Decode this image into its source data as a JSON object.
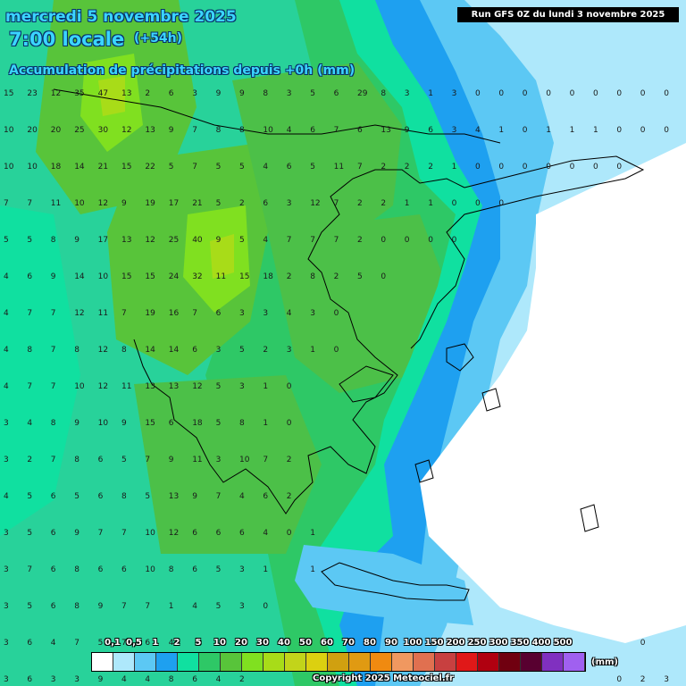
{
  "header": {
    "date": "mercredi 5 novembre 2025",
    "time": "7:00 locale",
    "lead": "(+54h)",
    "subtitle": "Accumulation de précipitations depuis +0h (mm)"
  },
  "run_info": "Run GFS 0Z du lundi 3 novembre 2025",
  "legend": {
    "unit": "(mm)",
    "labels": [
      "0,1",
      "0,5",
      "1",
      "2",
      "5",
      "10",
      "20",
      "30",
      "40",
      "50",
      "60",
      "70",
      "80",
      "90",
      "100",
      "150",
      "200",
      "250",
      "300",
      "350",
      "400",
      "500"
    ],
    "colors": [
      "#ffffff",
      "#aee8fb",
      "#5cc8f4",
      "#1ea0f0",
      "#10e0a0",
      "#2ec866",
      "#58c43a",
      "#80e020",
      "#a8dc18",
      "#c2d41a",
      "#dcd010",
      "#d0a010",
      "#e09a12",
      "#f08a10",
      "#f09860",
      "#e07050",
      "#c84040",
      "#e01818",
      "#b00010",
      "#700010",
      "#580030",
      "#8030c0",
      "#a060f0"
    ]
  },
  "copyright": "Copyright 2025 Meteociel.fr",
  "precip_values": [
    {
      "c": 1,
      "r": 1,
      "v": "15"
    },
    {
      "c": 2,
      "r": 1,
      "v": "23"
    },
    {
      "c": 3,
      "r": 1,
      "v": "12"
    },
    {
      "c": 4,
      "r": 1,
      "v": "35"
    },
    {
      "c": 5,
      "r": 1,
      "v": "47"
    },
    {
      "c": 6,
      "r": 1,
      "v": "13"
    },
    {
      "c": 7,
      "r": 1,
      "v": "2"
    },
    {
      "c": 8,
      "r": 1,
      "v": "6"
    },
    {
      "c": 9,
      "r": 1,
      "v": "3"
    },
    {
      "c": 10,
      "r": 1,
      "v": "9"
    },
    {
      "c": 11,
      "r": 1,
      "v": "9"
    },
    {
      "c": 12,
      "r": 1,
      "v": "8"
    },
    {
      "c": 13,
      "r": 1,
      "v": "3"
    },
    {
      "c": 14,
      "r": 1,
      "v": "5"
    },
    {
      "c": 15,
      "r": 1,
      "v": "6"
    },
    {
      "c": 16,
      "r": 1,
      "v": "29"
    },
    {
      "c": 17,
      "r": 1,
      "v": "8"
    },
    {
      "c": 18,
      "r": 1,
      "v": "3"
    },
    {
      "c": 19,
      "r": 1,
      "v": "1"
    },
    {
      "c": 20,
      "r": 1,
      "v": "3"
    },
    {
      "c": 21,
      "r": 1,
      "v": "0"
    },
    {
      "c": 22,
      "r": 1,
      "v": "0"
    },
    {
      "c": 23,
      "r": 1,
      "v": "0"
    },
    {
      "c": 24,
      "r": 1,
      "v": "0"
    },
    {
      "c": 25,
      "r": 1,
      "v": "0"
    },
    {
      "c": 26,
      "r": 1,
      "v": "0"
    },
    {
      "c": 27,
      "r": 1,
      "v": "0"
    },
    {
      "c": 28,
      "r": 1,
      "v": "0"
    },
    {
      "c": 29,
      "r": 1,
      "v": "0"
    },
    {
      "c": 1,
      "r": 2,
      "v": "10"
    },
    {
      "c": 2,
      "r": 2,
      "v": "20"
    },
    {
      "c": 3,
      "r": 2,
      "v": "20"
    },
    {
      "c": 4,
      "r": 2,
      "v": "25"
    },
    {
      "c": 5,
      "r": 2,
      "v": "30"
    },
    {
      "c": 6,
      "r": 2,
      "v": "12"
    },
    {
      "c": 7,
      "r": 2,
      "v": "13"
    },
    {
      "c": 8,
      "r": 2,
      "v": "9"
    },
    {
      "c": 9,
      "r": 2,
      "v": "7"
    },
    {
      "c": 10,
      "r": 2,
      "v": "8"
    },
    {
      "c": 11,
      "r": 2,
      "v": "8"
    },
    {
      "c": 12,
      "r": 2,
      "v": "10"
    },
    {
      "c": 13,
      "r": 2,
      "v": "4"
    },
    {
      "c": 14,
      "r": 2,
      "v": "6"
    },
    {
      "c": 15,
      "r": 2,
      "v": "7"
    },
    {
      "c": 16,
      "r": 2,
      "v": "6"
    },
    {
      "c": 17,
      "r": 2,
      "v": "13"
    },
    {
      "c": 18,
      "r": 2,
      "v": "9"
    },
    {
      "c": 19,
      "r": 2,
      "v": "6"
    },
    {
      "c": 20,
      "r": 2,
      "v": "3"
    },
    {
      "c": 21,
      "r": 2,
      "v": "4"
    },
    {
      "c": 22,
      "r": 2,
      "v": "1"
    },
    {
      "c": 23,
      "r": 2,
      "v": "0"
    },
    {
      "c": 24,
      "r": 2,
      "v": "1"
    },
    {
      "c": 25,
      "r": 2,
      "v": "1"
    },
    {
      "c": 26,
      "r": 2,
      "v": "1"
    },
    {
      "c": 27,
      "r": 2,
      "v": "0"
    },
    {
      "c": 28,
      "r": 2,
      "v": "0"
    },
    {
      "c": 29,
      "r": 2,
      "v": "0"
    },
    {
      "c": 1,
      "r": 3,
      "v": "10"
    },
    {
      "c": 2,
      "r": 3,
      "v": "10"
    },
    {
      "c": 3,
      "r": 3,
      "v": "18"
    },
    {
      "c": 4,
      "r": 3,
      "v": "14"
    },
    {
      "c": 5,
      "r": 3,
      "v": "21"
    },
    {
      "c": 6,
      "r": 3,
      "v": "15"
    },
    {
      "c": 7,
      "r": 3,
      "v": "22"
    },
    {
      "c": 8,
      "r": 3,
      "v": "5"
    },
    {
      "c": 9,
      "r": 3,
      "v": "7"
    },
    {
      "c": 10,
      "r": 3,
      "v": "5"
    },
    {
      "c": 11,
      "r": 3,
      "v": "5"
    },
    {
      "c": 12,
      "r": 3,
      "v": "4"
    },
    {
      "c": 13,
      "r": 3,
      "v": "6"
    },
    {
      "c": 14,
      "r": 3,
      "v": "5"
    },
    {
      "c": 15,
      "r": 3,
      "v": "11"
    },
    {
      "c": 16,
      "r": 3,
      "v": "7"
    },
    {
      "c": 17,
      "r": 3,
      "v": "2"
    },
    {
      "c": 18,
      "r": 3,
      "v": "2"
    },
    {
      "c": 19,
      "r": 3,
      "v": "2"
    },
    {
      "c": 20,
      "r": 3,
      "v": "1"
    },
    {
      "c": 21,
      "r": 3,
      "v": "0"
    },
    {
      "c": 22,
      "r": 3,
      "v": "0"
    },
    {
      "c": 23,
      "r": 3,
      "v": "0"
    },
    {
      "c": 24,
      "r": 3,
      "v": "0"
    },
    {
      "c": 25,
      "r": 3,
      "v": "0"
    },
    {
      "c": 26,
      "r": 3,
      "v": "0"
    },
    {
      "c": 27,
      "r": 3,
      "v": "0"
    },
    {
      "c": 1,
      "r": 4,
      "v": "7"
    },
    {
      "c": 2,
      "r": 4,
      "v": "7"
    },
    {
      "c": 3,
      "r": 4,
      "v": "11"
    },
    {
      "c": 4,
      "r": 4,
      "v": "10"
    },
    {
      "c": 5,
      "r": 4,
      "v": "12"
    },
    {
      "c": 6,
      "r": 4,
      "v": "9"
    },
    {
      "c": 7,
      "r": 4,
      "v": "19"
    },
    {
      "c": 8,
      "r": 4,
      "v": "17"
    },
    {
      "c": 9,
      "r": 4,
      "v": "21"
    },
    {
      "c": 10,
      "r": 4,
      "v": "5"
    },
    {
      "c": 11,
      "r": 4,
      "v": "2"
    },
    {
      "c": 12,
      "r": 4,
      "v": "6"
    },
    {
      "c": 13,
      "r": 4,
      "v": "3"
    },
    {
      "c": 14,
      "r": 4,
      "v": "12"
    },
    {
      "c": 15,
      "r": 4,
      "v": "7"
    },
    {
      "c": 16,
      "r": 4,
      "v": "2"
    },
    {
      "c": 17,
      "r": 4,
      "v": "2"
    },
    {
      "c": 18,
      "r": 4,
      "v": "1"
    },
    {
      "c": 19,
      "r": 4,
      "v": "1"
    },
    {
      "c": 20,
      "r": 4,
      "v": "0"
    },
    {
      "c": 21,
      "r": 4,
      "v": "0"
    },
    {
      "c": 22,
      "r": 4,
      "v": "0"
    },
    {
      "c": 1,
      "r": 5,
      "v": "5"
    },
    {
      "c": 2,
      "r": 5,
      "v": "5"
    },
    {
      "c": 3,
      "r": 5,
      "v": "8"
    },
    {
      "c": 4,
      "r": 5,
      "v": "9"
    },
    {
      "c": 5,
      "r": 5,
      "v": "17"
    },
    {
      "c": 6,
      "r": 5,
      "v": "13"
    },
    {
      "c": 7,
      "r": 5,
      "v": "12"
    },
    {
      "c": 8,
      "r": 5,
      "v": "25"
    },
    {
      "c": 9,
      "r": 5,
      "v": "40"
    },
    {
      "c": 10,
      "r": 5,
      "v": "9"
    },
    {
      "c": 11,
      "r": 5,
      "v": "5"
    },
    {
      "c": 12,
      "r": 5,
      "v": "4"
    },
    {
      "c": 13,
      "r": 5,
      "v": "7"
    },
    {
      "c": 14,
      "r": 5,
      "v": "7"
    },
    {
      "c": 15,
      "r": 5,
      "v": "7"
    },
    {
      "c": 16,
      "r": 5,
      "v": "2"
    },
    {
      "c": 17,
      "r": 5,
      "v": "0"
    },
    {
      "c": 18,
      "r": 5,
      "v": "0"
    },
    {
      "c": 19,
      "r": 5,
      "v": "0"
    },
    {
      "c": 20,
      "r": 5,
      "v": "0"
    },
    {
      "c": 1,
      "r": 6,
      "v": "4"
    },
    {
      "c": 2,
      "r": 6,
      "v": "6"
    },
    {
      "c": 3,
      "r": 6,
      "v": "9"
    },
    {
      "c": 4,
      "r": 6,
      "v": "14"
    },
    {
      "c": 5,
      "r": 6,
      "v": "10"
    },
    {
      "c": 6,
      "r": 6,
      "v": "15"
    },
    {
      "c": 7,
      "r": 6,
      "v": "15"
    },
    {
      "c": 8,
      "r": 6,
      "v": "24"
    },
    {
      "c": 9,
      "r": 6,
      "v": "32"
    },
    {
      "c": 10,
      "r": 6,
      "v": "11"
    },
    {
      "c": 11,
      "r": 6,
      "v": "15"
    },
    {
      "c": 12,
      "r": 6,
      "v": "18"
    },
    {
      "c": 13,
      "r": 6,
      "v": "2"
    },
    {
      "c": 14,
      "r": 6,
      "v": "8"
    },
    {
      "c": 15,
      "r": 6,
      "v": "2"
    },
    {
      "c": 16,
      "r": 6,
      "v": "5"
    },
    {
      "c": 17,
      "r": 6,
      "v": "0"
    },
    {
      "c": 1,
      "r": 7,
      "v": "4"
    },
    {
      "c": 2,
      "r": 7,
      "v": "7"
    },
    {
      "c": 3,
      "r": 7,
      "v": "7"
    },
    {
      "c": 4,
      "r": 7,
      "v": "12"
    },
    {
      "c": 5,
      "r": 7,
      "v": "11"
    },
    {
      "c": 6,
      "r": 7,
      "v": "7"
    },
    {
      "c": 7,
      "r": 7,
      "v": "19"
    },
    {
      "c": 8,
      "r": 7,
      "v": "16"
    },
    {
      "c": 9,
      "r": 7,
      "v": "7"
    },
    {
      "c": 10,
      "r": 7,
      "v": "6"
    },
    {
      "c": 11,
      "r": 7,
      "v": "3"
    },
    {
      "c": 12,
      "r": 7,
      "v": "3"
    },
    {
      "c": 13,
      "r": 7,
      "v": "4"
    },
    {
      "c": 14,
      "r": 7,
      "v": "3"
    },
    {
      "c": 15,
      "r": 7,
      "v": "0"
    },
    {
      "c": 1,
      "r": 8,
      "v": "4"
    },
    {
      "c": 2,
      "r": 8,
      "v": "8"
    },
    {
      "c": 3,
      "r": 8,
      "v": "7"
    },
    {
      "c": 4,
      "r": 8,
      "v": "8"
    },
    {
      "c": 5,
      "r": 8,
      "v": "12"
    },
    {
      "c": 6,
      "r": 8,
      "v": "8"
    },
    {
      "c": 7,
      "r": 8,
      "v": "14"
    },
    {
      "c": 8,
      "r": 8,
      "v": "14"
    },
    {
      "c": 9,
      "r": 8,
      "v": "6"
    },
    {
      "c": 10,
      "r": 8,
      "v": "3"
    },
    {
      "c": 11,
      "r": 8,
      "v": "5"
    },
    {
      "c": 12,
      "r": 8,
      "v": "2"
    },
    {
      "c": 13,
      "r": 8,
      "v": "3"
    },
    {
      "c": 14,
      "r": 8,
      "v": "1"
    },
    {
      "c": 15,
      "r": 8,
      "v": "0"
    },
    {
      "c": 1,
      "r": 9,
      "v": "4"
    },
    {
      "c": 2,
      "r": 9,
      "v": "7"
    },
    {
      "c": 3,
      "r": 9,
      "v": "7"
    },
    {
      "c": 4,
      "r": 9,
      "v": "10"
    },
    {
      "c": 5,
      "r": 9,
      "v": "12"
    },
    {
      "c": 6,
      "r": 9,
      "v": "11"
    },
    {
      "c": 7,
      "r": 9,
      "v": "13"
    },
    {
      "c": 8,
      "r": 9,
      "v": "13"
    },
    {
      "c": 9,
      "r": 9,
      "v": "12"
    },
    {
      "c": 10,
      "r": 9,
      "v": "5"
    },
    {
      "c": 11,
      "r": 9,
      "v": "3"
    },
    {
      "c": 12,
      "r": 9,
      "v": "1"
    },
    {
      "c": 13,
      "r": 9,
      "v": "0"
    },
    {
      "c": 1,
      "r": 10,
      "v": "3"
    },
    {
      "c": 2,
      "r": 10,
      "v": "4"
    },
    {
      "c": 3,
      "r": 10,
      "v": "8"
    },
    {
      "c": 4,
      "r": 10,
      "v": "9"
    },
    {
      "c": 5,
      "r": 10,
      "v": "10"
    },
    {
      "c": 6,
      "r": 10,
      "v": "9"
    },
    {
      "c": 7,
      "r": 10,
      "v": "15"
    },
    {
      "c": 8,
      "r": 10,
      "v": "6"
    },
    {
      "c": 9,
      "r": 10,
      "v": "18"
    },
    {
      "c": 10,
      "r": 10,
      "v": "5"
    },
    {
      "c": 11,
      "r": 10,
      "v": "8"
    },
    {
      "c": 12,
      "r": 10,
      "v": "1"
    },
    {
      "c": 13,
      "r": 10,
      "v": "0"
    },
    {
      "c": 1,
      "r": 11,
      "v": "3"
    },
    {
      "c": 2,
      "r": 11,
      "v": "2"
    },
    {
      "c": 3,
      "r": 11,
      "v": "7"
    },
    {
      "c": 4,
      "r": 11,
      "v": "8"
    },
    {
      "c": 5,
      "r": 11,
      "v": "6"
    },
    {
      "c": 6,
      "r": 11,
      "v": "5"
    },
    {
      "c": 7,
      "r": 11,
      "v": "7"
    },
    {
      "c": 8,
      "r": 11,
      "v": "9"
    },
    {
      "c": 9,
      "r": 11,
      "v": "11"
    },
    {
      "c": 10,
      "r": 11,
      "v": "3"
    },
    {
      "c": 11,
      "r": 11,
      "v": "10"
    },
    {
      "c": 12,
      "r": 11,
      "v": "7"
    },
    {
      "c": 13,
      "r": 11,
      "v": "2"
    },
    {
      "c": 1,
      "r": 12,
      "v": "4"
    },
    {
      "c": 2,
      "r": 12,
      "v": "5"
    },
    {
      "c": 3,
      "r": 12,
      "v": "6"
    },
    {
      "c": 4,
      "r": 12,
      "v": "5"
    },
    {
      "c": 5,
      "r": 12,
      "v": "6"
    },
    {
      "c": 6,
      "r": 12,
      "v": "8"
    },
    {
      "c": 7,
      "r": 12,
      "v": "5"
    },
    {
      "c": 8,
      "r": 12,
      "v": "13"
    },
    {
      "c": 9,
      "r": 12,
      "v": "9"
    },
    {
      "c": 10,
      "r": 12,
      "v": "7"
    },
    {
      "c": 11,
      "r": 12,
      "v": "4"
    },
    {
      "c": 12,
      "r": 12,
      "v": "6"
    },
    {
      "c": 13,
      "r": 12,
      "v": "2"
    },
    {
      "c": 1,
      "r": 13,
      "v": "3"
    },
    {
      "c": 2,
      "r": 13,
      "v": "5"
    },
    {
      "c": 3,
      "r": 13,
      "v": "6"
    },
    {
      "c": 4,
      "r": 13,
      "v": "9"
    },
    {
      "c": 5,
      "r": 13,
      "v": "7"
    },
    {
      "c": 6,
      "r": 13,
      "v": "7"
    },
    {
      "c": 7,
      "r": 13,
      "v": "10"
    },
    {
      "c": 8,
      "r": 13,
      "v": "12"
    },
    {
      "c": 9,
      "r": 13,
      "v": "6"
    },
    {
      "c": 10,
      "r": 13,
      "v": "6"
    },
    {
      "c": 11,
      "r": 13,
      "v": "6"
    },
    {
      "c": 12,
      "r": 13,
      "v": "4"
    },
    {
      "c": 13,
      "r": 13,
      "v": "0"
    },
    {
      "c": 14,
      "r": 13,
      "v": "1"
    },
    {
      "c": 1,
      "r": 14,
      "v": "3"
    },
    {
      "c": 2,
      "r": 14,
      "v": "7"
    },
    {
      "c": 3,
      "r": 14,
      "v": "6"
    },
    {
      "c": 4,
      "r": 14,
      "v": "8"
    },
    {
      "c": 5,
      "r": 14,
      "v": "6"
    },
    {
      "c": 6,
      "r": 14,
      "v": "6"
    },
    {
      "c": 7,
      "r": 14,
      "v": "10"
    },
    {
      "c": 8,
      "r": 14,
      "v": "8"
    },
    {
      "c": 9,
      "r": 14,
      "v": "6"
    },
    {
      "c": 10,
      "r": 14,
      "v": "5"
    },
    {
      "c": 11,
      "r": 14,
      "v": "3"
    },
    {
      "c": 12,
      "r": 14,
      "v": "1"
    },
    {
      "c": 14,
      "r": 14,
      "v": "1"
    },
    {
      "c": 1,
      "r": 15,
      "v": "3"
    },
    {
      "c": 2,
      "r": 15,
      "v": "5"
    },
    {
      "c": 3,
      "r": 15,
      "v": "6"
    },
    {
      "c": 4,
      "r": 15,
      "v": "8"
    },
    {
      "c": 5,
      "r": 15,
      "v": "9"
    },
    {
      "c": 6,
      "r": 15,
      "v": "7"
    },
    {
      "c": 7,
      "r": 15,
      "v": "7"
    },
    {
      "c": 8,
      "r": 15,
      "v": "1"
    },
    {
      "c": 9,
      "r": 15,
      "v": "4"
    },
    {
      "c": 10,
      "r": 15,
      "v": "5"
    },
    {
      "c": 11,
      "r": 15,
      "v": "3"
    },
    {
      "c": 12,
      "r": 15,
      "v": "0"
    },
    {
      "c": 1,
      "r": 16,
      "v": "3"
    },
    {
      "c": 2,
      "r": 16,
      "v": "6"
    },
    {
      "c": 3,
      "r": 16,
      "v": "4"
    },
    {
      "c": 4,
      "r": 16,
      "v": "7"
    },
    {
      "c": 5,
      "r": 16,
      "v": "5"
    },
    {
      "c": 6,
      "r": 16,
      "v": "7"
    },
    {
      "c": 7,
      "r": 16,
      "v": "6"
    },
    {
      "c": 8,
      "r": 16,
      "v": "4"
    },
    {
      "c": 28,
      "r": 16,
      "v": "0"
    },
    {
      "c": 1,
      "r": 17,
      "v": "3"
    },
    {
      "c": 2,
      "r": 17,
      "v": "6"
    },
    {
      "c": 3,
      "r": 17,
      "v": "3"
    },
    {
      "c": 4,
      "r": 17,
      "v": "3"
    },
    {
      "c": 5,
      "r": 17,
      "v": "9"
    },
    {
      "c": 6,
      "r": 17,
      "v": "4"
    },
    {
      "c": 7,
      "r": 17,
      "v": "4"
    },
    {
      "c": 8,
      "r": 17,
      "v": "8"
    },
    {
      "c": 9,
      "r": 17,
      "v": "6"
    },
    {
      "c": 10,
      "r": 17,
      "v": "4"
    },
    {
      "c": 11,
      "r": 17,
      "v": "2"
    },
    {
      "c": 27,
      "r": 17,
      "v": "0"
    },
    {
      "c": 28,
      "r": 17,
      "v": "2"
    },
    {
      "c": 29,
      "r": 17,
      "v": "3"
    }
  ]
}
